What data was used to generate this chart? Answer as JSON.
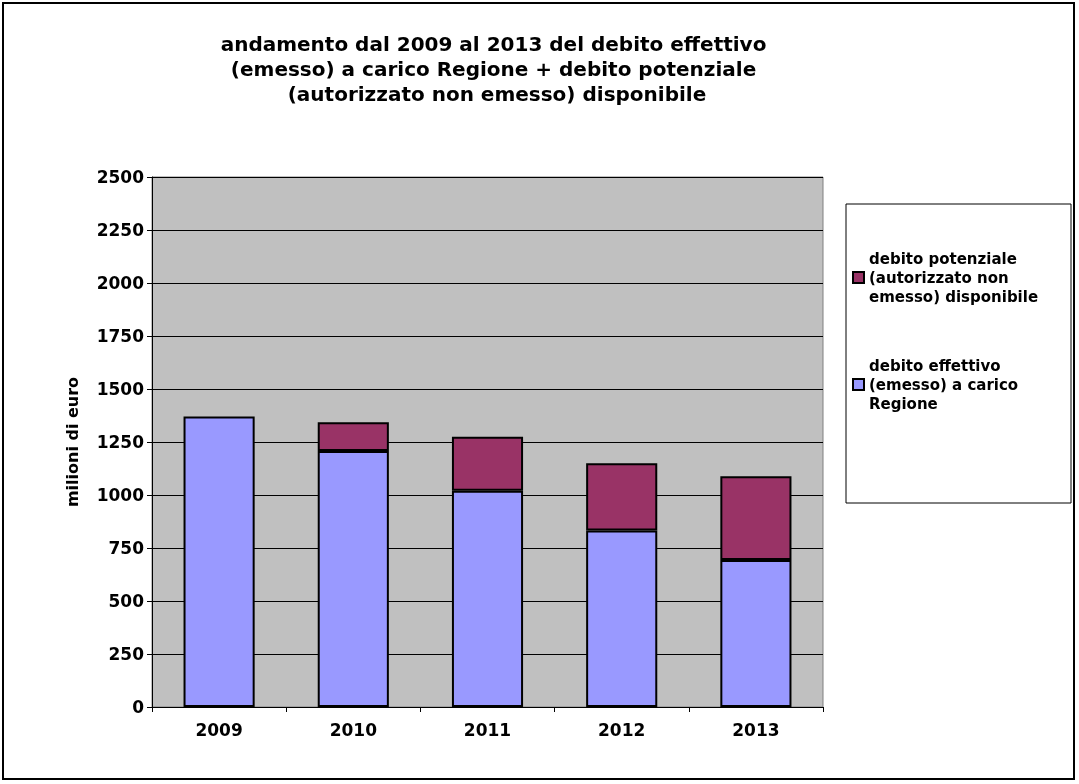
{
  "chart_data": {
    "type": "bar",
    "title": "andamento dal 2009 al 2013 del debito effettivo (emesso) a carico Regione + debito potenziale (autorizzato non emesso) disponibile",
    "ylabel": "milioni di euro",
    "categories": [
      "2009",
      "2010",
      "2011",
      "2012",
      "2013"
    ],
    "stacked": true,
    "series": [
      {
        "name": "debito effettivo (emesso) a carico Regione",
        "color": "#9999ff",
        "values": [
          1370,
          1208,
          1020,
          832,
          693
        ]
      },
      {
        "name": "debito potenziale (autorizzato non emesso) disponibile",
        "color": "#993366",
        "values": [
          null,
          135,
          255,
          318,
          395
        ]
      }
    ],
    "ylim": [
      0,
      2500
    ],
    "yticks": [
      0,
      250,
      500,
      750,
      1000,
      1250,
      1500,
      1750,
      2000,
      2250,
      2500
    ],
    "grid": "y",
    "legend": "right"
  }
}
